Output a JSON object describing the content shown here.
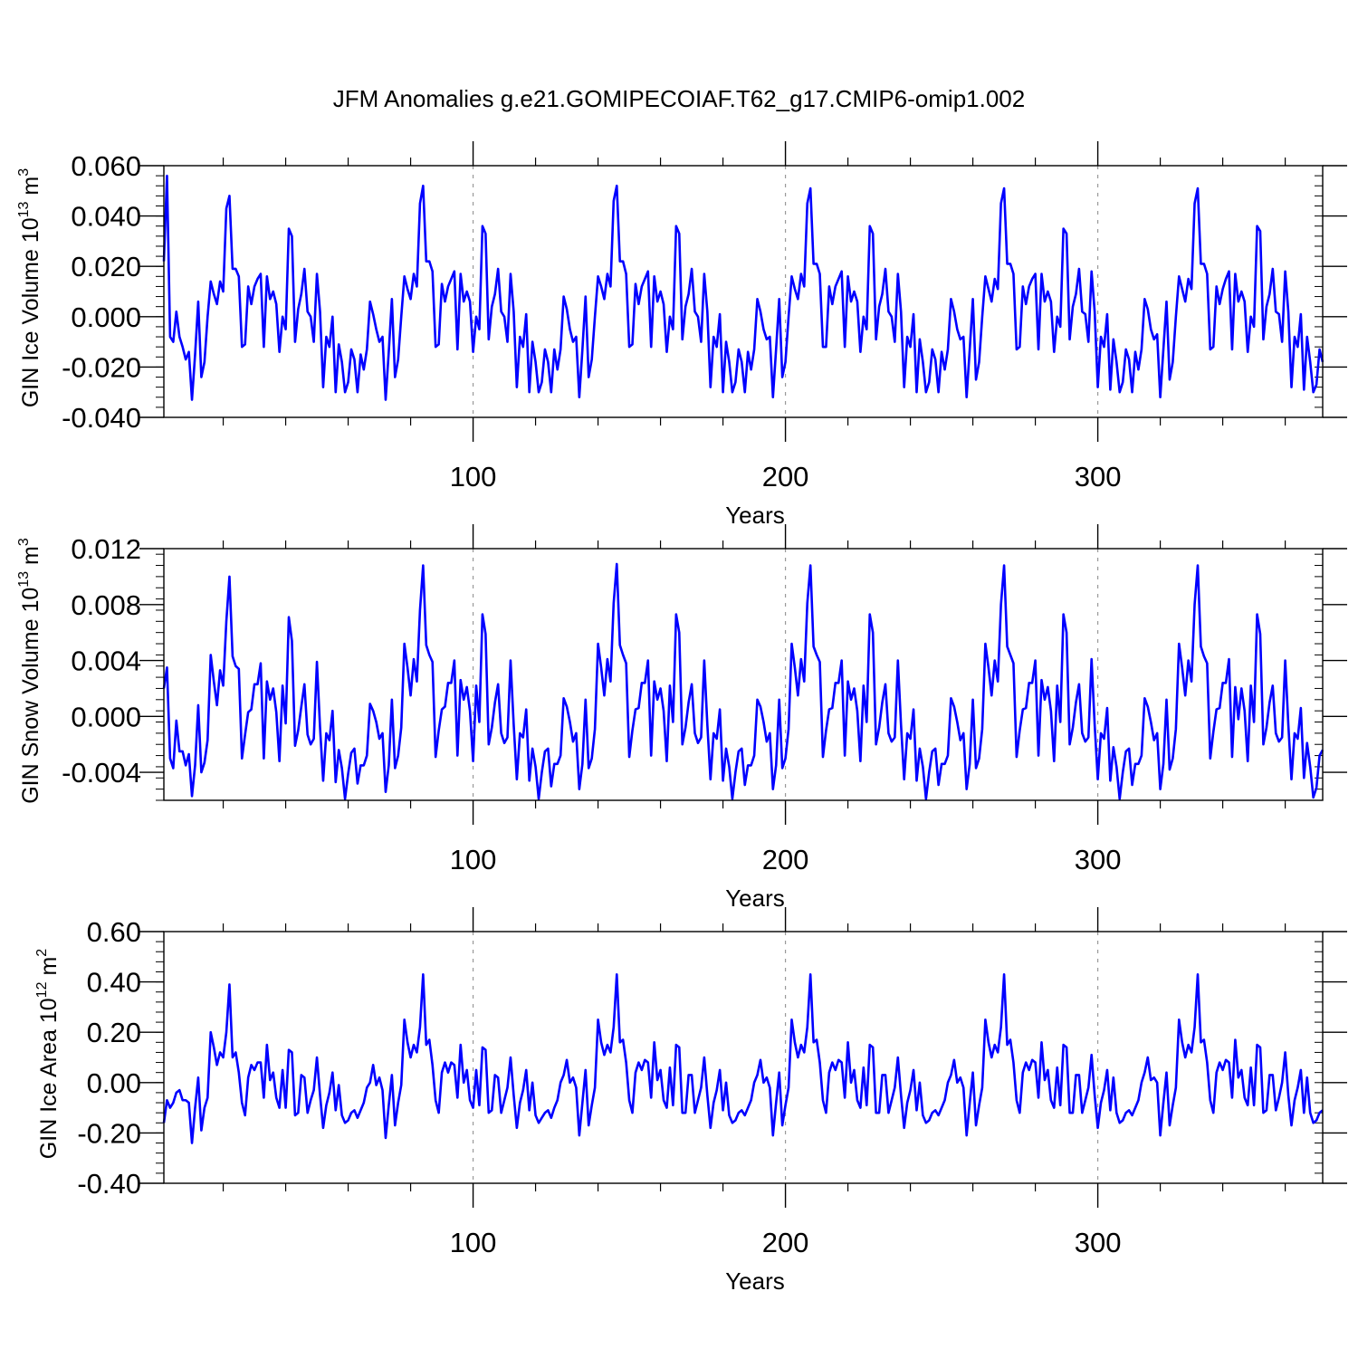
{
  "figure": {
    "title": "JFM Anomalies g.e21.GOMIPECOIAF.T62_g17.CMIP6-omip1.002",
    "line_color": "#0000ff",
    "grid_color": "#999999"
  },
  "chart_data": [
    {
      "type": "line",
      "xlabel": "Years",
      "ylabel_main": "GIN Ice Volume 10",
      "ylabel_exp": "13",
      "ylabel_unit": "m",
      "ylabel_unit_exp": "3",
      "xlim": [
        1,
        372
      ],
      "ylim": [
        -0.04,
        0.06
      ],
      "xticks": [
        100,
        200,
        300
      ],
      "xtick_labels": [
        "100",
        "200",
        "300"
      ],
      "yticks": [
        -0.04,
        -0.02,
        0.0,
        0.02,
        0.04,
        0.06
      ],
      "ytick_labels": [
        "-0.040",
        "-0.020",
        "0.000",
        "0.020",
        "0.040",
        "0.060"
      ],
      "grid_x": [
        100,
        200,
        300
      ],
      "values": [
        0.022,
        0.056,
        -0.008,
        -0.01,
        0.002,
        -0.008,
        -0.012,
        -0.017,
        -0.014,
        -0.033,
        -0.015,
        0.006,
        -0.024,
        -0.018,
        0.0,
        0.014,
        0.009,
        0.005,
        0.014,
        0.01,
        0.043,
        0.048,
        0.019,
        0.019,
        0.016,
        -0.012,
        -0.011,
        0.012,
        0.005,
        0.012,
        0.015,
        0.017,
        -0.012,
        0.016,
        0.007,
        0.01,
        0.005,
        -0.014,
        0.0,
        -0.005,
        0.035,
        0.032,
        -0.01,
        0.003,
        0.009,
        0.019,
        0.002,
        0.0,
        -0.01,
        0.017,
        0.002,
        -0.028,
        -0.008,
        -0.012,
        0.0,
        -0.03,
        -0.011,
        -0.018,
        -0.03,
        -0.026,
        -0.013,
        -0.017,
        -0.03,
        -0.015,
        -0.021,
        -0.013,
        0.006,
        0.001,
        -0.005,
        -0.01,
        -0.008,
        -0.033,
        -0.014,
        0.007,
        -0.024,
        -0.017,
        0.0,
        0.016,
        0.011,
        0.007,
        0.017,
        0.012,
        0.045,
        0.052,
        0.022,
        0.022,
        0.018,
        -0.012,
        -0.011,
        0.013,
        0.006,
        0.012,
        0.015,
        0.018,
        -0.013,
        0.017,
        0.006,
        0.01,
        0.006,
        -0.014,
        0.0,
        -0.005,
        0.036,
        0.033,
        -0.009,
        0.004,
        0.009,
        0.019,
        0.002,
        0.0,
        -0.01,
        0.017,
        0.002,
        -0.028,
        -0.008,
        -0.012,
        0.001,
        -0.03,
        -0.01,
        -0.018,
        -0.03,
        -0.026,
        -0.013,
        -0.018,
        -0.03,
        -0.013,
        -0.021,
        -0.013,
        0.008,
        0.003,
        -0.005,
        -0.01,
        -0.008,
        -0.032,
        -0.013,
        0.008,
        -0.024,
        -0.017,
        0.0,
        0.016,
        0.012,
        0.007,
        0.017,
        0.012,
        0.046,
        0.052,
        0.022,
        0.022,
        0.017,
        -0.012,
        -0.011,
        0.013,
        0.005,
        0.012,
        0.015,
        0.018,
        -0.012,
        0.016,
        0.006,
        0.01,
        0.005,
        -0.014,
        0.0,
        -0.005,
        0.036,
        0.033,
        -0.009,
        0.004,
        0.009,
        0.019,
        0.002,
        0.0,
        -0.01,
        0.017,
        0.002,
        -0.028,
        -0.008,
        -0.012,
        0.001,
        -0.03,
        -0.01,
        -0.018,
        -0.03,
        -0.026,
        -0.013,
        -0.018,
        -0.03,
        -0.014,
        -0.021,
        -0.013,
        0.007,
        0.002,
        -0.005,
        -0.009,
        -0.008,
        -0.032,
        -0.013,
        0.007,
        -0.024,
        -0.018,
        0.0,
        0.016,
        0.011,
        0.007,
        0.017,
        0.012,
        0.045,
        0.051,
        0.021,
        0.021,
        0.017,
        -0.012,
        -0.012,
        0.012,
        0.005,
        0.012,
        0.015,
        0.018,
        -0.012,
        0.016,
        0.006,
        0.01,
        0.006,
        -0.014,
        0.0,
        -0.005,
        0.036,
        0.033,
        -0.009,
        0.004,
        0.009,
        0.019,
        0.002,
        0.0,
        -0.01,
        0.017,
        0.002,
        -0.028,
        -0.008,
        -0.012,
        0.001,
        -0.03,
        -0.009,
        -0.018,
        -0.03,
        -0.026,
        -0.013,
        -0.017,
        -0.03,
        -0.014,
        -0.021,
        -0.013,
        0.007,
        0.002,
        -0.005,
        -0.009,
        -0.008,
        -0.032,
        -0.013,
        0.007,
        -0.025,
        -0.018,
        0.0,
        0.016,
        0.011,
        0.006,
        0.015,
        0.011,
        0.045,
        0.051,
        0.021,
        0.021,
        0.017,
        -0.013,
        -0.012,
        0.012,
        0.005,
        0.012,
        0.015,
        0.017,
        -0.013,
        0.017,
        0.006,
        0.01,
        0.006,
        -0.014,
        0.0,
        -0.004,
        0.035,
        0.033,
        -0.009,
        0.004,
        0.009,
        0.019,
        0.002,
        0.001,
        -0.01,
        0.018,
        0.002,
        -0.028,
        -0.008,
        -0.012,
        0.001,
        -0.029,
        -0.009,
        -0.018,
        -0.03,
        -0.026,
        -0.013,
        -0.017,
        -0.03,
        -0.014,
        -0.021,
        -0.013,
        0.007,
        0.003,
        -0.005,
        -0.009,
        -0.007,
        -0.032,
        -0.013,
        0.006,
        -0.025,
        -0.018,
        0.0,
        0.016,
        0.011,
        0.006,
        0.015,
        0.011,
        0.045,
        0.051,
        0.021,
        0.021,
        0.017,
        -0.013,
        -0.012,
        0.012,
        0.005,
        0.011,
        0.015,
        0.018,
        -0.013,
        0.017,
        0.006,
        0.01,
        0.006,
        -0.014,
        0.0,
        -0.004,
        0.036,
        0.034,
        -0.009,
        0.004,
        0.009,
        0.019,
        0.002,
        0.001,
        -0.01,
        0.018,
        0.002,
        -0.028,
        -0.008,
        -0.012,
        0.001,
        -0.029,
        -0.008,
        -0.018,
        -0.03,
        -0.027,
        -0.013,
        -0.018
      ]
    },
    {
      "type": "line",
      "xlabel": "Years",
      "ylabel_main": "GIN Snow Volume 10",
      "ylabel_exp": "13",
      "ylabel_unit": "m",
      "ylabel_unit_exp": "3",
      "xlim": [
        1,
        372
      ],
      "ylim": [
        -0.006,
        0.012
      ],
      "xticks": [
        100,
        200,
        300
      ],
      "xtick_labels": [
        "100",
        "200",
        "300"
      ],
      "yticks": [
        -0.004,
        0.0,
        0.004,
        0.008,
        0.012
      ],
      "ytick_labels": [
        "-0.004",
        "0.000",
        "0.004",
        "0.008",
        "0.012"
      ],
      "grid_x": [
        100,
        200,
        300
      ],
      "values": [
        0.002,
        0.0035,
        -0.003,
        -0.0037,
        -0.0003,
        -0.0025,
        -0.0025,
        -0.0035,
        -0.0027,
        -0.0057,
        -0.0035,
        0.0008,
        -0.004,
        -0.0033,
        -0.0017,
        0.0044,
        0.0025,
        0.0008,
        0.0033,
        0.0022,
        0.0068,
        0.01,
        0.0043,
        0.0036,
        0.0034,
        -0.003,
        -0.0013,
        0.0003,
        0.0005,
        0.0023,
        0.0023,
        0.0038,
        -0.003,
        0.0025,
        0.0012,
        0.002,
        0.0003,
        -0.0032,
        0.0022,
        -0.0005,
        0.0071,
        0.0054,
        -0.0021,
        -0.001,
        0.0007,
        0.0023,
        -0.0013,
        -0.002,
        -0.0016,
        0.0039,
        -0.0008,
        -0.0046,
        -0.0012,
        -0.0017,
        0.0004,
        -0.0047,
        -0.0024,
        -0.0037,
        -0.0059,
        -0.0041,
        -0.0026,
        -0.0023,
        -0.0048,
        -0.0035,
        -0.0035,
        -0.0028,
        0.0009,
        0.0004,
        -0.0004,
        -0.0016,
        -0.0012,
        -0.0054,
        -0.0035,
        0.0012,
        -0.0037,
        -0.0028,
        -0.0008,
        0.0052,
        0.0035,
        0.0015,
        0.0041,
        0.0025,
        0.0076,
        0.0108,
        0.0051,
        0.0044,
        0.0039,
        -0.0029,
        -0.001,
        0.0005,
        0.0007,
        0.0024,
        0.0024,
        0.004,
        -0.0028,
        0.0026,
        0.0012,
        0.0021,
        0.0004,
        -0.0032,
        0.0022,
        -0.0004,
        0.0073,
        0.0059,
        -0.002,
        -0.0008,
        0.001,
        0.0023,
        -0.0012,
        -0.0019,
        -0.0015,
        0.004,
        -0.0006,
        -0.0045,
        -0.0012,
        -0.0015,
        0.0005,
        -0.0046,
        -0.0023,
        -0.0036,
        -0.0059,
        -0.004,
        -0.0025,
        -0.0023,
        -0.005,
        -0.0034,
        -0.0034,
        -0.0028,
        0.0013,
        0.0007,
        -0.0004,
        -0.0018,
        -0.0012,
        -0.0052,
        -0.0034,
        0.0012,
        -0.0037,
        -0.003,
        -0.0009,
        0.0052,
        0.0035,
        0.0015,
        0.0041,
        0.0025,
        0.0081,
        0.0109,
        0.0051,
        0.0044,
        0.0038,
        -0.0029,
        -0.001,
        0.0005,
        0.0006,
        0.0024,
        0.0024,
        0.004,
        -0.0028,
        0.0025,
        0.0012,
        0.002,
        0.0004,
        -0.0032,
        0.0022,
        -0.0004,
        0.0073,
        0.006,
        -0.002,
        -0.0008,
        0.001,
        0.0023,
        -0.0012,
        -0.0019,
        -0.0015,
        0.004,
        -0.0006,
        -0.0045,
        -0.0012,
        -0.0016,
        0.0005,
        -0.0046,
        -0.0023,
        -0.0036,
        -0.0059,
        -0.004,
        -0.0025,
        -0.0023,
        -0.0049,
        -0.0035,
        -0.0035,
        -0.0028,
        0.0012,
        0.0007,
        -0.0004,
        -0.0018,
        -0.0012,
        -0.0052,
        -0.0035,
        0.0012,
        -0.0037,
        -0.003,
        -0.0009,
        0.0052,
        0.0035,
        0.0015,
        0.0041,
        0.0025,
        0.0081,
        0.0108,
        0.005,
        0.0044,
        0.0039,
        -0.0029,
        -0.001,
        0.0005,
        0.0006,
        0.0024,
        0.0024,
        0.004,
        -0.0028,
        0.0025,
        0.0012,
        0.002,
        0.0004,
        -0.0032,
        0.0022,
        -0.0004,
        0.0073,
        0.006,
        -0.002,
        -0.0008,
        0.001,
        0.0023,
        -0.0012,
        -0.0018,
        -0.0015,
        0.004,
        -0.0006,
        -0.0045,
        -0.0012,
        -0.0016,
        0.0005,
        -0.0046,
        -0.0023,
        -0.0036,
        -0.0059,
        -0.004,
        -0.0025,
        -0.0023,
        -0.0049,
        -0.0034,
        -0.0034,
        -0.0028,
        0.0013,
        0.0007,
        -0.0004,
        -0.0017,
        -0.0012,
        -0.0052,
        -0.0034,
        0.0012,
        -0.0037,
        -0.003,
        -0.0009,
        0.0052,
        0.0035,
        0.0015,
        0.004,
        0.0025,
        0.008,
        0.0108,
        0.005,
        0.0044,
        0.0038,
        -0.0029,
        -0.001,
        0.0005,
        0.0006,
        0.0024,
        0.0024,
        0.004,
        -0.0028,
        0.0026,
        0.0012,
        0.0021,
        0.0004,
        -0.0032,
        0.0022,
        -0.0004,
        0.0073,
        0.006,
        -0.002,
        -0.0008,
        0.001,
        0.0023,
        -0.0012,
        -0.0018,
        -0.0015,
        0.0041,
        -0.0006,
        -0.0045,
        -0.0012,
        -0.0016,
        0.0006,
        -0.0046,
        -0.0022,
        -0.0036,
        -0.0059,
        -0.004,
        -0.0025,
        -0.0023,
        -0.0049,
        -0.0034,
        -0.0034,
        -0.0028,
        0.0013,
        0.0007,
        -0.0004,
        -0.0017,
        -0.0012,
        -0.0052,
        -0.0034,
        0.0012,
        -0.0038,
        -0.003,
        -0.0009,
        0.0052,
        0.0035,
        0.0015,
        0.004,
        0.0025,
        0.008,
        0.0108,
        0.005,
        0.0043,
        0.0038,
        -0.003,
        -0.0011,
        0.0005,
        0.0006,
        0.0024,
        0.0024,
        0.0041,
        -0.0029,
        0.0021,
        -0.0002,
        0.002,
        0.0004,
        -0.0032,
        0.0022,
        -0.0004,
        0.0073,
        0.0059,
        -0.002,
        -0.0008,
        0.001,
        0.0022,
        -0.0012,
        -0.0018,
        -0.0015,
        0.004,
        -0.0006,
        -0.0045,
        -0.0012,
        -0.0016,
        0.0006,
        -0.0044,
        -0.0019,
        -0.0036,
        -0.0058,
        -0.0051,
        -0.0028,
        -0.0024
      ]
    },
    {
      "type": "line",
      "xlabel": "Years",
      "ylabel_main": "GIN Ice Area 10",
      "ylabel_exp": "12",
      "ylabel_unit": "m",
      "ylabel_unit_exp": "2",
      "xlim": [
        1,
        372
      ],
      "ylim": [
        -0.4,
        0.6
      ],
      "xticks": [
        100,
        200,
        300
      ],
      "xtick_labels": [
        "100",
        "200",
        "300"
      ],
      "yticks": [
        -0.4,
        -0.2,
        0.0,
        0.2,
        0.4,
        0.6
      ],
      "ytick_labels": [
        "-0.40",
        "-0.20",
        "0.00",
        "0.20",
        "0.40",
        "0.60"
      ],
      "grid_x": [
        100,
        200,
        300
      ],
      "values": [
        -0.16,
        -0.07,
        -0.1,
        -0.08,
        -0.04,
        -0.03,
        -0.07,
        -0.07,
        -0.08,
        -0.24,
        -0.1,
        0.02,
        -0.19,
        -0.1,
        -0.06,
        0.2,
        0.14,
        0.07,
        0.12,
        0.1,
        0.2,
        0.39,
        0.1,
        0.12,
        0.04,
        -0.08,
        -0.13,
        0.02,
        0.07,
        0.05,
        0.08,
        0.08,
        -0.06,
        0.15,
        0.01,
        0.04,
        -0.06,
        -0.1,
        0.05,
        -0.1,
        0.13,
        0.12,
        -0.13,
        -0.12,
        0.03,
        0.02,
        -0.12,
        -0.07,
        -0.03,
        0.1,
        -0.05,
        -0.18,
        -0.09,
        -0.04,
        0.04,
        -0.11,
        -0.01,
        -0.13,
        -0.16,
        -0.15,
        -0.12,
        -0.11,
        -0.14,
        -0.11,
        -0.08,
        -0.02,
        0.0,
        0.07,
        -0.01,
        0.02,
        -0.03,
        -0.22,
        -0.09,
        0.03,
        -0.17,
        -0.08,
        -0.01,
        0.25,
        0.16,
        0.1,
        0.15,
        0.12,
        0.22,
        0.43,
        0.15,
        0.17,
        0.07,
        -0.07,
        -0.12,
        0.04,
        0.08,
        0.04,
        0.08,
        0.07,
        -0.06,
        0.15,
        0.0,
        0.05,
        -0.07,
        -0.1,
        0.05,
        -0.09,
        0.14,
        0.13,
        -0.12,
        -0.11,
        0.03,
        0.02,
        -0.12,
        -0.07,
        -0.02,
        0.1,
        -0.05,
        -0.18,
        -0.08,
        -0.03,
        0.05,
        -0.11,
        0.0,
        -0.13,
        -0.16,
        -0.14,
        -0.12,
        -0.11,
        -0.14,
        -0.1,
        -0.07,
        0.0,
        0.03,
        0.09,
        0.0,
        0.02,
        -0.02,
        -0.21,
        -0.08,
        0.05,
        -0.17,
        -0.09,
        -0.02,
        0.25,
        0.16,
        0.11,
        0.15,
        0.12,
        0.22,
        0.43,
        0.16,
        0.17,
        0.08,
        -0.07,
        -0.12,
        0.04,
        0.08,
        0.05,
        0.09,
        0.08,
        -0.06,
        0.16,
        0.01,
        0.05,
        -0.07,
        -0.1,
        0.06,
        -0.09,
        0.15,
        0.14,
        -0.12,
        -0.12,
        0.03,
        0.03,
        -0.12,
        -0.07,
        -0.02,
        0.1,
        -0.05,
        -0.18,
        -0.08,
        -0.03,
        0.05,
        -0.11,
        0.0,
        -0.13,
        -0.16,
        -0.15,
        -0.12,
        -0.11,
        -0.13,
        -0.1,
        -0.07,
        0.0,
        0.03,
        0.09,
        0.0,
        0.02,
        -0.02,
        -0.21,
        -0.08,
        0.04,
        -0.17,
        -0.09,
        -0.02,
        0.25,
        0.16,
        0.1,
        0.15,
        0.12,
        0.22,
        0.43,
        0.16,
        0.17,
        0.08,
        -0.07,
        -0.12,
        0.04,
        0.08,
        0.05,
        0.09,
        0.08,
        -0.06,
        0.16,
        0.0,
        0.05,
        -0.07,
        -0.1,
        0.06,
        -0.09,
        0.15,
        0.14,
        -0.12,
        -0.12,
        0.03,
        0.03,
        -0.12,
        -0.07,
        -0.02,
        0.1,
        -0.05,
        -0.18,
        -0.08,
        -0.03,
        0.05,
        -0.11,
        0.0,
        -0.13,
        -0.16,
        -0.15,
        -0.12,
        -0.11,
        -0.13,
        -0.1,
        -0.07,
        0.0,
        0.03,
        0.09,
        0.0,
        0.02,
        -0.02,
        -0.21,
        -0.08,
        0.04,
        -0.17,
        -0.09,
        -0.02,
        0.25,
        0.16,
        0.1,
        0.15,
        0.12,
        0.22,
        0.43,
        0.15,
        0.17,
        0.08,
        -0.07,
        -0.12,
        0.04,
        0.08,
        0.05,
        0.09,
        0.08,
        -0.06,
        0.16,
        0.01,
        0.05,
        -0.07,
        -0.1,
        0.06,
        -0.09,
        0.15,
        0.14,
        -0.12,
        -0.12,
        0.03,
        0.03,
        -0.12,
        -0.07,
        -0.02,
        0.11,
        -0.05,
        -0.18,
        -0.08,
        -0.03,
        0.05,
        -0.11,
        0.02,
        -0.12,
        -0.16,
        -0.15,
        -0.12,
        -0.11,
        -0.13,
        -0.1,
        -0.07,
        0.0,
        0.04,
        0.1,
        0.01,
        0.02,
        0.0,
        -0.21,
        -0.08,
        0.04,
        -0.17,
        -0.09,
        -0.02,
        0.25,
        0.16,
        0.1,
        0.15,
        0.12,
        0.22,
        0.43,
        0.16,
        0.17,
        0.08,
        -0.07,
        -0.12,
        0.04,
        0.08,
        0.05,
        0.09,
        0.08,
        -0.06,
        0.17,
        0.02,
        0.05,
        -0.06,
        -0.09,
        0.06,
        -0.09,
        0.15,
        0.14,
        -0.12,
        -0.11,
        0.03,
        0.03,
        -0.11,
        -0.06,
        0.0,
        0.12,
        -0.05,
        -0.17,
        -0.07,
        -0.02,
        0.05,
        -0.12,
        0.02,
        -0.12,
        -0.16,
        -0.15,
        -0.12,
        -0.11
      ]
    }
  ]
}
